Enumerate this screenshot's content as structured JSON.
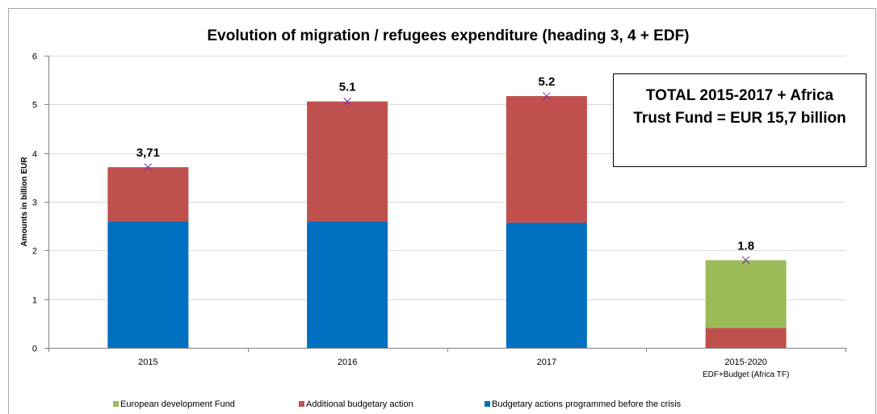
{
  "chart_data": {
    "type": "bar",
    "stacked": true,
    "title": "Evolution of migration / refugees expenditure (heading 3, 4 + EDF)",
    "ylabel": "Amounts in billion EUR",
    "ylim": [
      0,
      6
    ],
    "yticks": [
      "0",
      "1",
      "2",
      "3",
      "4",
      "5",
      "6"
    ],
    "grid": true,
    "legend_position": "bottom",
    "categories": [
      {
        "label": "2015",
        "sublabel": ""
      },
      {
        "label": "2016",
        "sublabel": ""
      },
      {
        "label": "2017",
        "sublabel": ""
      },
      {
        "label": "2015-2020",
        "sublabel": "EDF+Budget (Africa TF)"
      }
    ],
    "series": [
      {
        "name": "Budgetary actions programmed before the crisis",
        "color": "#0070c0",
        "values": [
          2.6,
          2.6,
          2.57,
          0
        ]
      },
      {
        "name": "Additional budgetary action",
        "color": "#c0504d",
        "values": [
          1.11,
          2.46,
          2.6,
          0.41
        ]
      },
      {
        "name": "European development Fund",
        "color": "#9bbb59",
        "values": [
          0,
          0,
          0,
          1.39
        ]
      }
    ],
    "legend_order": [
      "European development Fund",
      "Additional budgetary action",
      "Budgetary actions programmed before the crisis"
    ],
    "totals": [
      3.71,
      5.06,
      5.17,
      1.8
    ],
    "total_labels": [
      "3,71",
      "5.1",
      "5.2",
      "1.8"
    ],
    "total_marker_color": "#7030a0",
    "annotation": {
      "line1": "TOTAL 2015-2017 + Africa",
      "line2": "Trust Fund = EUR 15,7 billion"
    }
  }
}
